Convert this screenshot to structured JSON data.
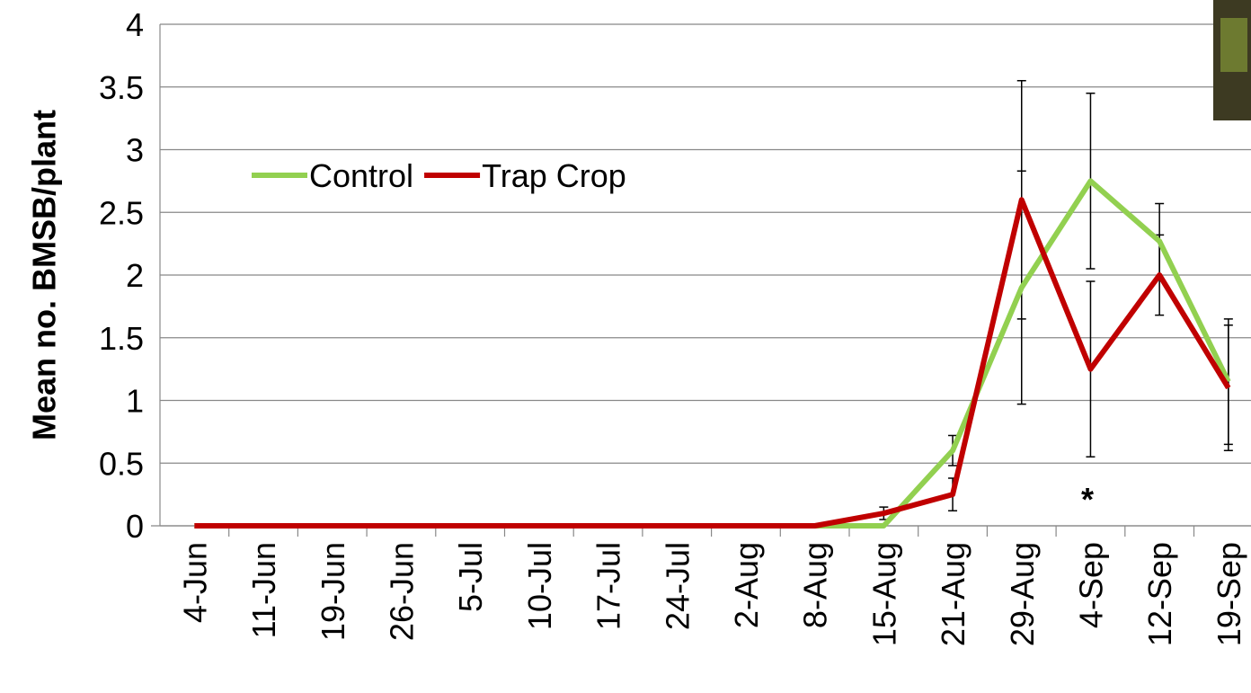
{
  "chart_data": {
    "type": "line",
    "y_label": "Mean no. BMSB/plant",
    "categories": [
      "4-Jun",
      "11-Jun",
      "19-Jun",
      "26-Jun",
      "5-Jul",
      "10-Jul",
      "17-Jul",
      "24-Jul",
      "2-Aug",
      "8-Aug",
      "15-Aug",
      "21-Aug",
      "29-Aug",
      "4-Sep",
      "12-Sep",
      "19-Sep"
    ],
    "series": [
      {
        "name": "Control",
        "color": "#92d050",
        "values": [
          0,
          0,
          0,
          0,
          0,
          0,
          0,
          0,
          0,
          0,
          0,
          0.6,
          1.9,
          2.75,
          2.27,
          1.15
        ],
        "errors": [
          null,
          null,
          null,
          null,
          null,
          null,
          null,
          null,
          null,
          null,
          null,
          0.12,
          0.93,
          0.7,
          0.3,
          0.5
        ]
      },
      {
        "name": "Trap Crop",
        "color": "#c00000",
        "values": [
          0,
          0,
          0,
          0,
          0,
          0,
          0,
          0,
          0,
          0,
          0.1,
          0.25,
          2.6,
          1.25,
          2.0,
          1.1
        ],
        "errors": [
          null,
          null,
          null,
          null,
          null,
          null,
          null,
          null,
          null,
          null,
          0.05,
          0.13,
          0.95,
          0.7,
          0.32,
          0.5
        ]
      }
    ],
    "annotations": [
      "*"
    ],
    "ylim": [
      0,
      4
    ],
    "yticks": [
      0,
      0.5,
      1,
      1.5,
      2,
      2.5,
      3,
      3.5,
      4
    ],
    "grid": true
  }
}
